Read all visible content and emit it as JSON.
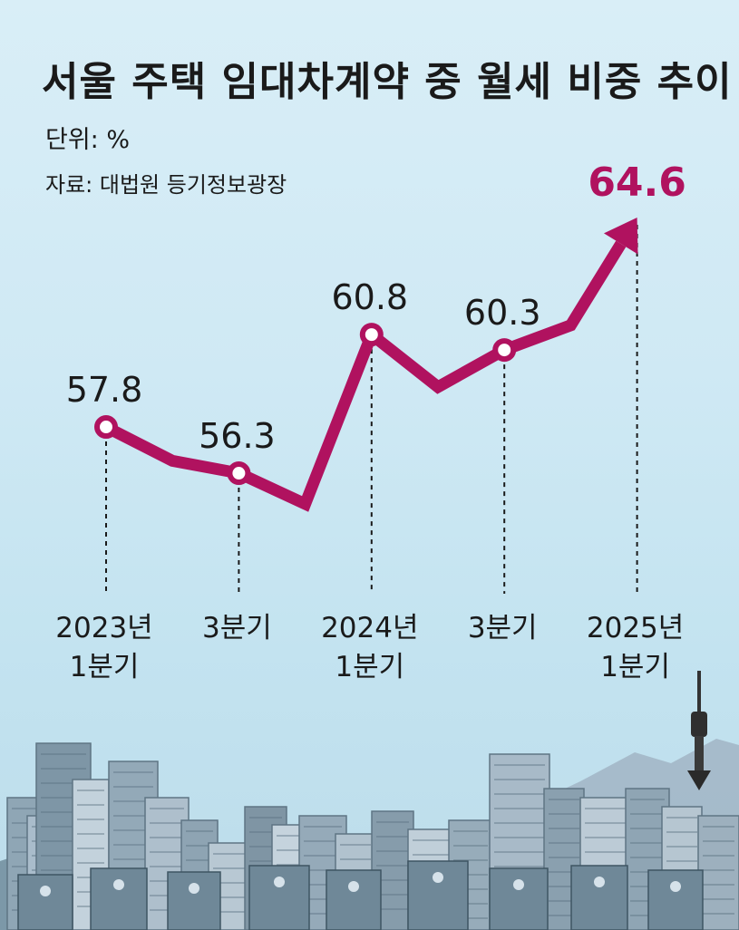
{
  "header": {
    "title": "서울 주택 임대차계약 중 월세 비중 추이",
    "unit": "단위: %",
    "source": "자료: 대법원 등기정보광장"
  },
  "colors": {
    "line": "#b0125f",
    "background": "#cfe9f4",
    "accent_value": "#b0125f"
  },
  "chart_data": {
    "type": "line",
    "title": "서울 주택 임대차계약 중 월세 비중 추이",
    "unit": "%",
    "points": [
      {
        "period": "2023년 1분기",
        "value": 57.8,
        "labeled": true,
        "label_lines": [
          "2023년",
          "1분기"
        ]
      },
      {
        "period": "2023년 2분기",
        "value": 56.7,
        "labeled": false,
        "label_lines": []
      },
      {
        "period": "2023년 3분기",
        "value": 56.3,
        "labeled": true,
        "label_lines": [
          "3분기"
        ]
      },
      {
        "period": "2023년 4분기",
        "value": 55.3,
        "labeled": false,
        "label_lines": []
      },
      {
        "period": "2024년 1분기",
        "value": 60.8,
        "labeled": true,
        "label_lines": [
          "2024년",
          "1분기"
        ]
      },
      {
        "period": "2024년 2분기",
        "value": 59.1,
        "labeled": false,
        "label_lines": []
      },
      {
        "period": "2024년 3분기",
        "value": 60.3,
        "labeled": true,
        "label_lines": [
          "3분기"
        ]
      },
      {
        "period": "2024년 4분기",
        "value": 61.1,
        "labeled": false,
        "label_lines": []
      },
      {
        "period": "2025년 1분기",
        "value": 64.6,
        "labeled": true,
        "label_lines": [
          "2025년",
          "1분기"
        ]
      }
    ],
    "value_labels": [
      "57.8",
      "56.3",
      "60.8",
      "60.3",
      "64.6"
    ],
    "grid": false,
    "axes_visible": false
  }
}
